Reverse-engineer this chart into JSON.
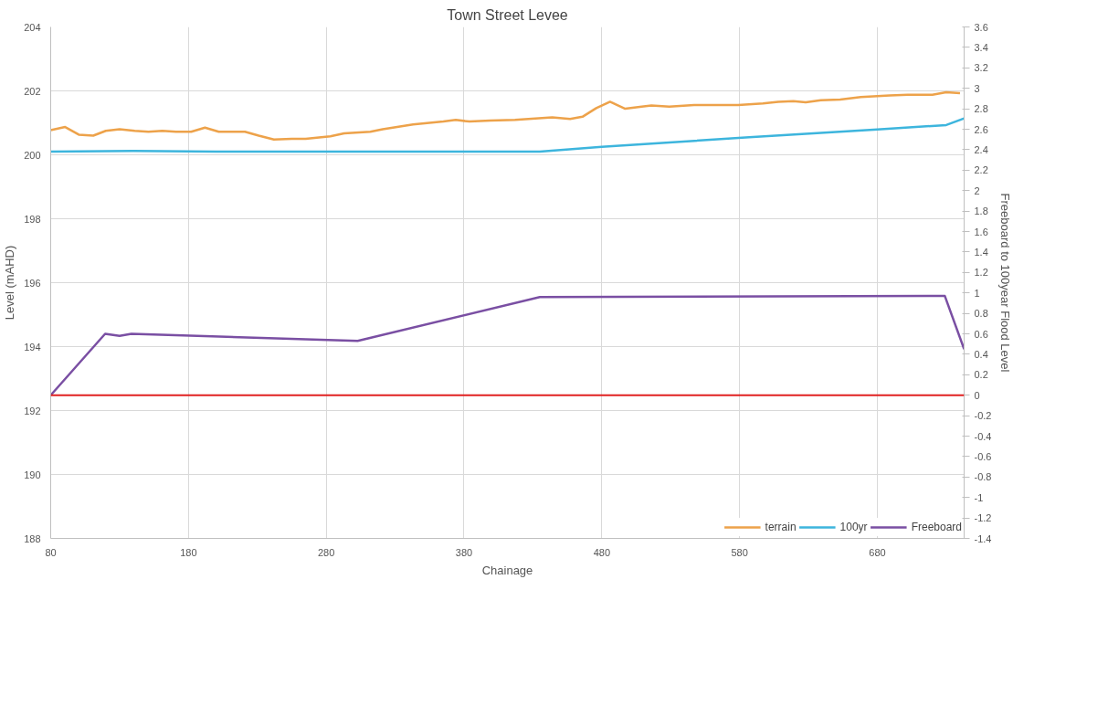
{
  "chart_data": {
    "type": "line",
    "title": "Town Street Levee",
    "xlabel": "Chainage",
    "ylabel": "Level (mAHD)",
    "y2label": "Freeboard to 100year Flood Level",
    "xlim": [
      80,
      743
    ],
    "xticks": [
      80,
      180,
      280,
      380,
      480,
      580,
      680
    ],
    "ylim": [
      188,
      204
    ],
    "yticks": [
      188,
      190,
      192,
      194,
      196,
      198,
      200,
      202,
      204
    ],
    "y2lim": [
      -1.4,
      3.6
    ],
    "y2ticks": [
      -1.4,
      -1.2,
      -1,
      -0.8,
      -0.6,
      -0.4,
      -0.2,
      0,
      0.2,
      0.4,
      0.6,
      0.8,
      1,
      1.2,
      1.4,
      1.6,
      1.8,
      2,
      2.2,
      2.4,
      2.6,
      2.8,
      3,
      3.2,
      3.4,
      3.6
    ],
    "grid": true,
    "legend": "bottom right",
    "line_style": "solid",
    "marker": "none",
    "ref_lines": [
      {
        "axis": "y2",
        "value": 0,
        "label": null,
        "color": "#e02020"
      }
    ],
    "series": [
      {
        "name": "terrain",
        "color": "#eda24a",
        "x": [
          80,
          90.5,
          100.4,
          110.9,
          120,
          130,
          141,
          151,
          161,
          171,
          182,
          192,
          202,
          221,
          231,
          242,
          255,
          265,
          283,
          293,
          312,
          321,
          343,
          365,
          374,
          384,
          399,
          417,
          444,
          457,
          466,
          476,
          486,
          497,
          509,
          516,
          529,
          547,
          579,
          597,
          608,
          619,
          628,
          639,
          653,
          668,
          689,
          702,
          720,
          730,
          740
        ],
        "values": [
          200.77,
          200.87,
          200.63,
          200.6,
          200.75,
          200.8,
          200.75,
          200.72,
          200.75,
          200.72,
          200.72,
          200.85,
          200.72,
          200.72,
          200.6,
          200.48,
          200.5,
          200.5,
          200.58,
          200.67,
          200.72,
          200.8,
          200.95,
          201.04,
          201.09,
          201.04,
          201.07,
          201.09,
          201.17,
          201.12,
          201.19,
          201.46,
          201.66,
          201.44,
          201.51,
          201.54,
          201.51,
          201.56,
          201.56,
          201.61,
          201.66,
          201.68,
          201.64,
          201.71,
          201.73,
          201.81,
          201.86,
          201.88,
          201.88,
          201.96,
          201.93
        ]
      },
      {
        "name": "100yr",
        "color": "#3db5dd",
        "x": [
          80,
          140,
          200,
          300,
          435,
          480,
          587,
          680,
          730,
          743
        ],
        "values": [
          200.1,
          200.12,
          200.1,
          200.1,
          200.1,
          200.25,
          200.55,
          200.79,
          200.93,
          201.14
        ]
      },
      {
        "name": "Freeboard",
        "color": "#7a4fa3",
        "axis": "y2",
        "x": [
          80,
          119.5,
          130,
          138.6,
          302.8,
          435,
          729,
          743
        ],
        "values": [
          0,
          0.6,
          0.58,
          0.6,
          0.53,
          0.96,
          0.97,
          0.45
        ]
      }
    ]
  }
}
